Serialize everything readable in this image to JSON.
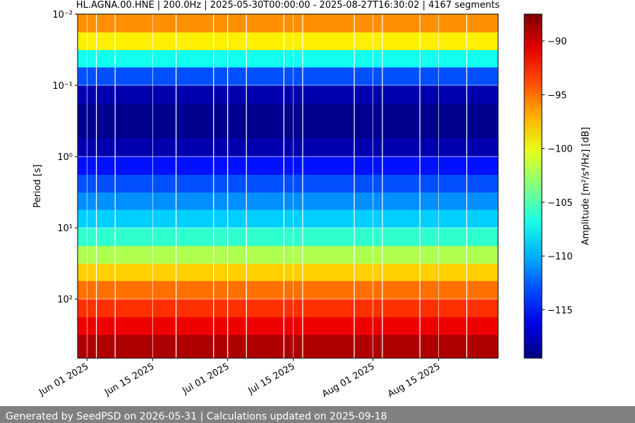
{
  "chart_data": {
    "type": "spectrogram",
    "title": "HL.AGNA.00.HNE | 200.0Hz | 2025-05-30T00:00:00 - 2025-08-27T16:30:02 | 4167 segments",
    "ylabel": "Period [s]",
    "colorbar_label": "Amplitude [m²/s⁴/Hz] [dB]",
    "footer": "Generated by SeedPSD on 2026-05-31 | Calculations updated on 2025-09-18",
    "colormap": "jet",
    "yscale": "log",
    "y_inverted": true,
    "grid": true,
    "xlim": [
      "2025-05-30T00:00:00",
      "2025-08-27T16:30:02"
    ],
    "xticks": [
      {
        "value": "2025-06-01T00:00:00",
        "label": "Jun 01 2025"
      },
      {
        "value": "2025-06-15T00:00:00",
        "label": "Jun 15 2025"
      },
      {
        "value": "2025-07-01T00:00:00",
        "label": "Jul 01 2025"
      },
      {
        "value": "2025-07-15T00:00:00",
        "label": "Jul 15 2025"
      },
      {
        "value": "2025-08-01T00:00:00",
        "label": "Aug 01 2025"
      },
      {
        "value": "2025-08-15T00:00:00",
        "label": "Aug 15 2025"
      }
    ],
    "ylim": [
      0.01,
      676
    ],
    "yticks": [
      {
        "value": 0.01,
        "label": "10⁻²"
      },
      {
        "value": 0.1,
        "label": "10⁻¹"
      },
      {
        "value": 1,
        "label": "10⁰"
      },
      {
        "value": 10,
        "label": "10¹"
      },
      {
        "value": 100,
        "label": "10²"
      }
    ],
    "clim": [
      -119.5,
      -87.5
    ],
    "cticks": [
      {
        "value": -90,
        "label": "−90"
      },
      {
        "value": -95,
        "label": "−95"
      },
      {
        "value": -100,
        "label": "−100"
      },
      {
        "value": -105,
        "label": "−105"
      },
      {
        "value": -110,
        "label": "−110"
      },
      {
        "value": -115,
        "label": "−115"
      }
    ],
    "period_bins": [
      0.01,
      0.018,
      0.032,
      0.056,
      0.1,
      0.18,
      0.32,
      0.56,
      1,
      1.8,
      3.2,
      5.6,
      10,
      18,
      32,
      56,
      100,
      180,
      320,
      676
    ],
    "values": [
      -96,
      -99,
      -107,
      -113,
      -118,
      -119,
      -119,
      -118,
      -115,
      -113,
      -111,
      -109,
      -106,
      -102,
      -98,
      -95,
      -93,
      -91,
      -89
    ],
    "gaps": [
      "2025-06-03",
      "2025-06-07",
      "2025-06-20",
      "2025-06-28",
      "2025-07-01",
      "2025-07-05",
      "2025-07-13",
      "2025-07-17",
      "2025-07-28",
      "2025-08-03",
      "2025-08-11",
      "2025-08-21"
    ]
  }
}
